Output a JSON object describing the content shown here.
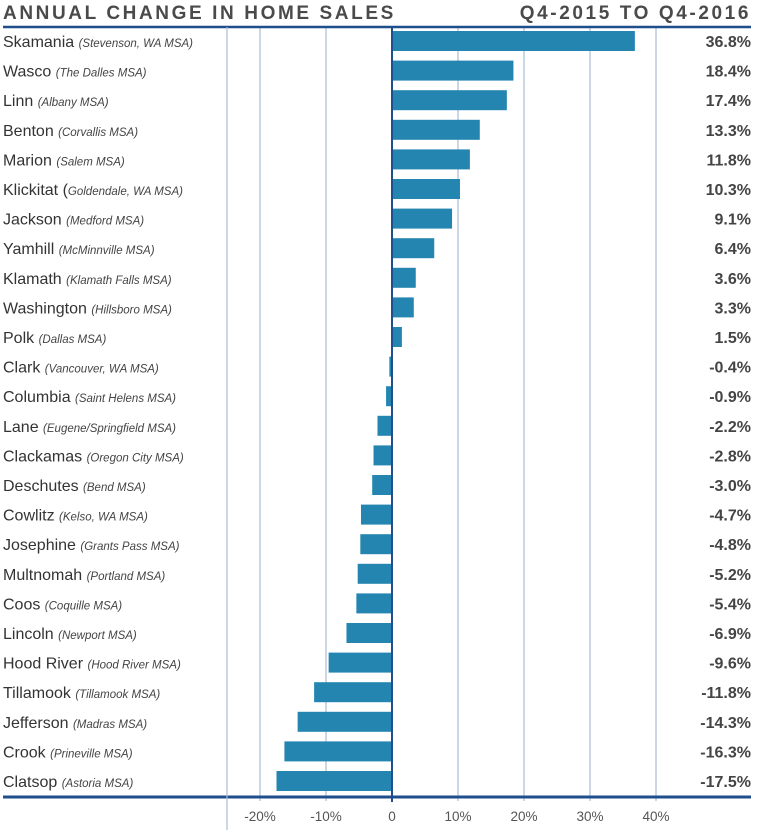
{
  "chart_data": {
    "type": "bar",
    "orientation": "horizontal",
    "title": "ANNUAL CHANGE IN HOME SALES",
    "subtitle": "Q4-2015 TO Q4-2016",
    "xlabel": "",
    "ylabel": "",
    "xlim": [
      -25,
      45
    ],
    "grid": true,
    "legend": "none",
    "ticks": [
      {
        "value": -20,
        "label": "-20%"
      },
      {
        "value": -10,
        "label": "-10%"
      },
      {
        "value": 0,
        "label": "0"
      },
      {
        "value": 10,
        "label": "10%"
      },
      {
        "value": 20,
        "label": "20%"
      },
      {
        "value": 30,
        "label": "30%"
      },
      {
        "value": 40,
        "label": "40%"
      }
    ],
    "bar_color": "#2486b0",
    "axis_color": "#1f4e8c",
    "grid_color": "#a9bcd6",
    "categories": [
      {
        "name": "Skamania",
        "sub": "(Stevenson, WA MSA)",
        "value": 36.8,
        "label": "36.8%"
      },
      {
        "name": "Wasco",
        "sub": "(The Dalles MSA)",
        "value": 18.4,
        "label": "18.4%"
      },
      {
        "name": "Linn",
        "sub": "(Albany MSA)",
        "value": 17.4,
        "label": "17.4%"
      },
      {
        "name": "Benton",
        "sub": "(Corvallis MSA)",
        "value": 13.3,
        "label": "13.3%"
      },
      {
        "name": "Marion",
        "sub": "(Salem MSA)",
        "value": 11.8,
        "label": "11.8%"
      },
      {
        "name": "Klickitat (",
        "sub": "Goldendale, WA MSA)",
        "value": 10.3,
        "label": "10.3%"
      },
      {
        "name": "Jackson",
        "sub": "(Medford MSA)",
        "value": 9.1,
        "label": "9.1%"
      },
      {
        "name": "Yamhill",
        "sub": "(McMinnville MSA)",
        "value": 6.4,
        "label": "6.4%"
      },
      {
        "name": "Klamath",
        "sub": "(Klamath Falls MSA)",
        "value": 3.6,
        "label": "3.6%"
      },
      {
        "name": "Washington",
        "sub": "(Hillsboro MSA)",
        "value": 3.3,
        "label": "3.3%"
      },
      {
        "name": "Polk",
        "sub": "(Dallas MSA)",
        "value": 1.5,
        "label": "1.5%"
      },
      {
        "name": "Clark",
        "sub": "(Vancouver, WA MSA)",
        "value": -0.4,
        "label": "-0.4%"
      },
      {
        "name": "Columbia",
        "sub": "(Saint Helens MSA)",
        "value": -0.9,
        "label": "-0.9%"
      },
      {
        "name": "Lane",
        "sub": "(Eugene/Springfield MSA)",
        "value": -2.2,
        "label": "-2.2%"
      },
      {
        "name": "Clackamas",
        "sub": "(Oregon City MSA)",
        "value": -2.8,
        "label": "-2.8%"
      },
      {
        "name": "Deschutes",
        "sub": "(Bend MSA)",
        "value": -3.0,
        "label": "-3.0%"
      },
      {
        "name": "Cowlitz",
        "sub": "(Kelso, WA MSA)",
        "value": -4.7,
        "label": "-4.7%"
      },
      {
        "name": "Josephine",
        "sub": "(Grants Pass MSA)",
        "value": -4.8,
        "label": "-4.8%"
      },
      {
        "name": "Multnomah",
        "sub": "(Portland MSA)",
        "value": -5.2,
        "label": "-5.2%"
      },
      {
        "name": "Coos",
        "sub": "(Coquille MSA)",
        "value": -5.4,
        "label": "-5.4%"
      },
      {
        "name": "Lincoln",
        "sub": "(Newport MSA)",
        "value": -6.9,
        "label": "-6.9%"
      },
      {
        "name": "Hood River",
        "sub": "(Hood River MSA)",
        "value": -9.6,
        "label": "-9.6%"
      },
      {
        "name": "Tillamook",
        "sub": "(Tillamook MSA)",
        "value": -11.8,
        "label": "-11.8%"
      },
      {
        "name": "Jefferson",
        "sub": "(Madras MSA)",
        "value": -14.3,
        "label": "-14.3%"
      },
      {
        "name": "Crook",
        "sub": "(Prineville MSA)",
        "value": -16.3,
        "label": "-16.3%"
      },
      {
        "name": "Clatsop",
        "sub": "(Astoria MSA)",
        "value": -17.5,
        "label": "-17.5%"
      }
    ]
  }
}
